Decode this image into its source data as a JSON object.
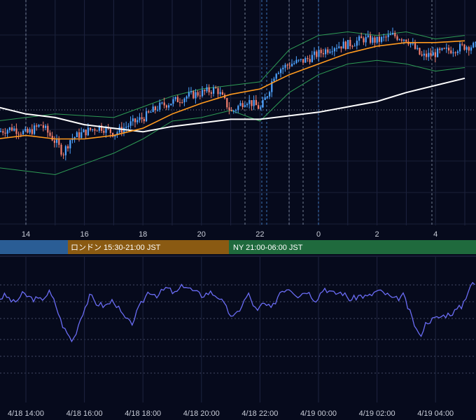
{
  "chart_data": [
    {
      "type": "candlestick",
      "panel": "price",
      "title": "",
      "x_ticks": [
        "14",
        "16",
        "18",
        "20",
        "22",
        "0",
        "2",
        "4"
      ],
      "colors": {
        "up": "#4fa3ff",
        "down": "#f37f6e",
        "bollinger": "#2e9c55",
        "ma_fast": "#ff9a1f",
        "ma_slow": "#ffffff",
        "background": "#060a1c"
      },
      "series": [
        {
          "kind": "candles",
          "approx_close_path": [
            [
              13.0,
              34
            ],
            [
              13.5,
              36
            ],
            [
              14.0,
              33
            ],
            [
              14.5,
              38
            ],
            [
              15.0,
              28
            ],
            [
              15.25,
              22
            ],
            [
              15.5,
              30
            ],
            [
              16.0,
              34
            ],
            [
              16.5,
              37
            ],
            [
              17.0,
              33
            ],
            [
              17.5,
              38
            ],
            [
              18.0,
              42
            ],
            [
              18.5,
              48
            ],
            [
              19.0,
              51
            ],
            [
              19.5,
              54
            ],
            [
              20.0,
              56
            ],
            [
              20.5,
              58
            ],
            [
              21.0,
              45
            ],
            [
              21.5,
              52
            ],
            [
              22.0,
              47
            ],
            [
              22.25,
              56
            ],
            [
              22.5,
              68
            ],
            [
              23.0,
              72
            ],
            [
              23.5,
              74
            ],
            [
              24.0,
              78
            ],
            [
              24.5,
              82
            ],
            [
              25.0,
              83
            ],
            [
              25.5,
              86
            ],
            [
              26.0,
              85
            ],
            [
              26.5,
              88
            ],
            [
              27.0,
              86
            ],
            [
              27.5,
              76
            ],
            [
              28.0,
              78
            ],
            [
              28.5,
              80
            ],
            [
              29.0,
              82
            ]
          ]
        },
        {
          "kind": "bollinger",
          "upper": [
            [
              13,
              40
            ],
            [
              15,
              44
            ],
            [
              17,
              42
            ],
            [
              18,
              48
            ],
            [
              19,
              54
            ],
            [
              20,
              58
            ],
            [
              21,
              60
            ],
            [
              22,
              62
            ],
            [
              23,
              80
            ],
            [
              24,
              88
            ],
            [
              25,
              90
            ],
            [
              26,
              88
            ],
            [
              27,
              90
            ],
            [
              28,
              86
            ],
            [
              29,
              88
            ]
          ],
          "lower": [
            [
              13,
              14
            ],
            [
              15,
              10
            ],
            [
              16,
              16
            ],
            [
              17,
              22
            ],
            [
              18,
              30
            ],
            [
              19,
              40
            ],
            [
              20,
              42
            ],
            [
              21,
              46
            ],
            [
              22,
              40
            ],
            [
              23,
              56
            ],
            [
              24,
              66
            ],
            [
              25,
              72
            ],
            [
              26,
              74
            ],
            [
              27,
              72
            ],
            [
              28,
              68
            ],
            [
              29,
              70
            ]
          ]
        },
        {
          "kind": "ma_fast",
          "points": [
            [
              13,
              30
            ],
            [
              14,
              32
            ],
            [
              15,
              30
            ],
            [
              16,
              30
            ],
            [
              17,
              32
            ],
            [
              18,
              36
            ],
            [
              19,
              44
            ],
            [
              20,
              50
            ],
            [
              21,
              55
            ],
            [
              22,
              58
            ],
            [
              23,
              66
            ],
            [
              24,
              72
            ],
            [
              25,
              78
            ],
            [
              26,
              82
            ],
            [
              27,
              84
            ],
            [
              28,
              84
            ],
            [
              29,
              85
            ]
          ]
        },
        {
          "kind": "ma_slow",
          "points": [
            [
              13,
              48
            ],
            [
              14,
              44
            ],
            [
              15,
              42
            ],
            [
              16,
              38
            ],
            [
              17,
              36
            ],
            [
              18,
              34
            ],
            [
              19,
              37
            ],
            [
              20,
              39
            ],
            [
              21,
              41
            ],
            [
              22,
              41
            ],
            [
              23,
              43
            ],
            [
              24,
              45
            ],
            [
              25,
              48
            ],
            [
              26,
              51
            ],
            [
              27,
              56
            ],
            [
              28,
              60
            ],
            [
              29,
              64
            ]
          ]
        }
      ]
    },
    {
      "type": "line",
      "panel": "oscillator",
      "title": "",
      "x_ticks": [
        "4/18 14:00",
        "4/18 16:00",
        "4/18 18:00",
        "4/18 20:00",
        "4/18 22:00",
        "4/19 00:00",
        "4/19 02:00",
        "4/19 04:00"
      ],
      "colors": {
        "line": "#6a6cf4"
      },
      "series": [
        {
          "values": [
            [
              13.0,
              52
            ],
            [
              13.3,
              55
            ],
            [
              13.6,
              50
            ],
            [
              13.9,
              56
            ],
            [
              14.2,
              53
            ],
            [
              14.5,
              52
            ],
            [
              14.8,
              57
            ],
            [
              15.0,
              50
            ],
            [
              15.2,
              38
            ],
            [
              15.35,
              32
            ],
            [
              15.6,
              25
            ],
            [
              15.9,
              42
            ],
            [
              16.2,
              55
            ],
            [
              16.4,
              50
            ],
            [
              16.7,
              48
            ],
            [
              17.0,
              52
            ],
            [
              17.3,
              42
            ],
            [
              17.6,
              36
            ],
            [
              17.9,
              48
            ],
            [
              18.2,
              58
            ],
            [
              18.5,
              55
            ],
            [
              18.8,
              60
            ],
            [
              19.1,
              56
            ],
            [
              19.4,
              62
            ],
            [
              19.7,
              58
            ],
            [
              20.0,
              55
            ],
            [
              20.3,
              57
            ],
            [
              20.6,
              54
            ],
            [
              20.9,
              45
            ],
            [
              21.1,
              40
            ],
            [
              21.3,
              46
            ],
            [
              21.6,
              56
            ],
            [
              21.9,
              44
            ],
            [
              22.1,
              50
            ],
            [
              22.4,
              46
            ],
            [
              22.7,
              58
            ],
            [
              23.0,
              60
            ],
            [
              23.3,
              55
            ],
            [
              23.6,
              58
            ],
            [
              23.9,
              52
            ],
            [
              24.2,
              60
            ],
            [
              24.5,
              56
            ],
            [
              24.8,
              57
            ],
            [
              25.1,
              52
            ],
            [
              25.4,
              55
            ],
            [
              25.7,
              54
            ],
            [
              26.0,
              58
            ],
            [
              26.3,
              56
            ],
            [
              26.6,
              52
            ],
            [
              26.9,
              55
            ],
            [
              27.2,
              40
            ],
            [
              27.45,
              28
            ],
            [
              27.7,
              38
            ],
            [
              28.0,
              40
            ],
            [
              28.3,
              42
            ],
            [
              28.6,
              44
            ],
            [
              28.9,
              48
            ],
            [
              29.2,
              62
            ]
          ]
        }
      ]
    }
  ],
  "sessions": [
    {
      "label": "",
      "color": "#2a5d95"
    },
    {
      "label": "ロンドン 15:30-21:00 JST",
      "color": "#8a5a12"
    },
    {
      "label": "NY 21:00-06:00 JST",
      "color": "#1f6a3d"
    }
  ]
}
